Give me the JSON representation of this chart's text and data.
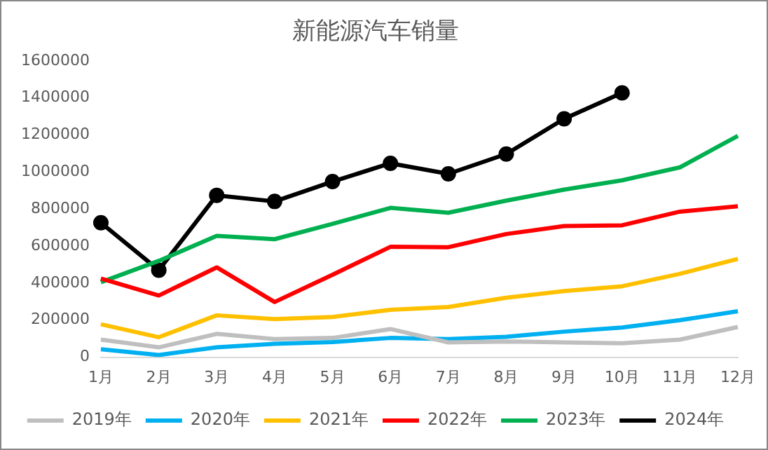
{
  "chart_data": {
    "type": "line",
    "title": "新能源汽车销量",
    "categories": [
      "1月",
      "2月",
      "3月",
      "4月",
      "5月",
      "6月",
      "7月",
      "8月",
      "9月",
      "10月",
      "11月",
      "12月"
    ],
    "ylim": [
      0,
      1600000
    ],
    "yticks": [
      0,
      200000,
      400000,
      600000,
      800000,
      1000000,
      1200000,
      1400000,
      1600000
    ],
    "grid": false,
    "legend": "bottom",
    "line_style": "solid",
    "series": [
      {
        "name": "2019年",
        "color": "#bfbfbf",
        "marker": "none",
        "values": [
          95000,
          53000,
          126000,
          98000,
          104000,
          152000,
          80000,
          85000,
          80000,
          75000,
          95000,
          163000
        ]
      },
      {
        "name": "2020年",
        "color": "#00b0f0",
        "marker": "none",
        "values": [
          43000,
          12000,
          53000,
          72000,
          82000,
          104000,
          98000,
          110000,
          138000,
          160000,
          200000,
          248000
        ]
      },
      {
        "name": "2021年",
        "color": "#ffc000",
        "marker": "none",
        "values": [
          178000,
          108000,
          226000,
          206000,
          217000,
          256000,
          271000,
          321000,
          357000,
          383000,
          450000,
          531000
        ]
      },
      {
        "name": "2022年",
        "color": "#ff0000",
        "marker": "none",
        "values": [
          425000,
          333000,
          485000,
          298000,
          445000,
          596000,
          594000,
          665000,
          708000,
          712000,
          786000,
          815000
        ]
      },
      {
        "name": "2023年",
        "color": "#00b050",
        "marker": "none",
        "values": [
          405000,
          520000,
          655000,
          637000,
          720000,
          806000,
          780000,
          845000,
          905000,
          955000,
          1025000,
          1195000
        ]
      },
      {
        "name": "2024年",
        "color": "#000000",
        "marker": "circle",
        "values": [
          726000,
          470000,
          874000,
          841000,
          948000,
          1047000,
          990000,
          1097000,
          1287000,
          1427000,
          null,
          null
        ]
      }
    ]
  }
}
